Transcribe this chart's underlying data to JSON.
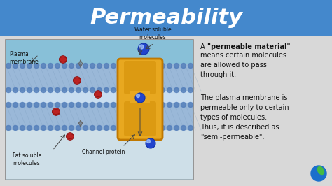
{
  "title": "Permeability",
  "title_color": "#ffffff",
  "title_bg_color": "#4488cc",
  "bg_color": "#d8d8d8",
  "diagram_bg": "#f0f0f0",
  "text1": "A \"permeable material\"\nmeans certain molecules\nare allowed to pass\nthrough it.",
  "text1_bold_part": "\"permeable material\"",
  "text2": "The plasma membrane is\npermeable only to certain\ntypes of molecules.\nThus, it is described as\n\"semi-permeable\".",
  "label_plasma": "Plasma\nmembrane",
  "label_fat": "Fat soluble\nmolecules",
  "label_water": "Water soluble\nmolecules",
  "label_channel": "Channel protein",
  "mem_upper_color": "#7ab0d0",
  "mem_mid_color": "#b0ccee",
  "mem_lower_color": "#8ab8d8",
  "channel_color": "#e8a820",
  "channel_edge": "#c07800",
  "red_mol_color": "#bb2222",
  "blue_mol_color": "#2244cc",
  "arrow_color": "#444444"
}
